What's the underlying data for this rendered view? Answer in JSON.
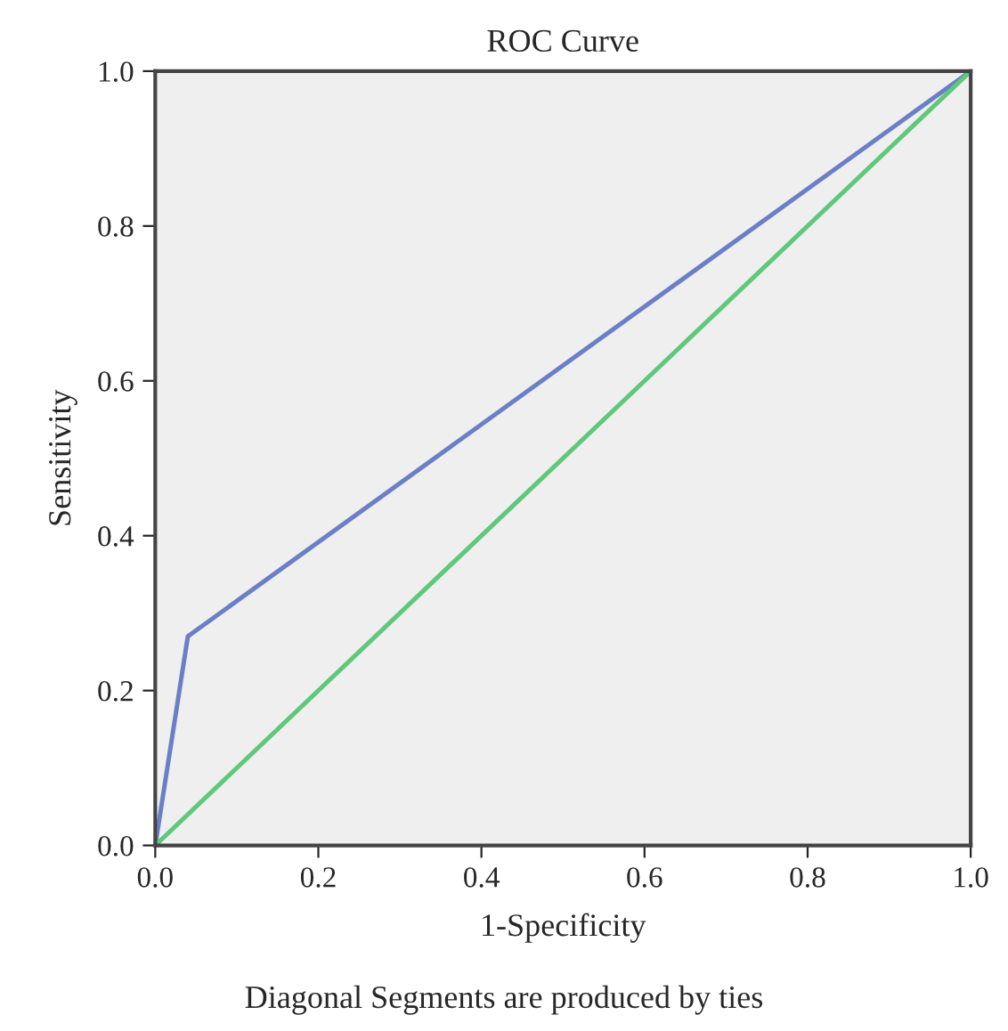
{
  "chart_data": {
    "type": "line",
    "title": "ROC Curve",
    "xlabel": "1-Specificity",
    "ylabel": "Sensitivity",
    "annotations": [
      "Diagonal Segments are produced by ties"
    ],
    "series": [
      {
        "color": "#6b7fc7",
        "x": [
          0,
          0.04,
          1
        ],
        "values": [
          0,
          0.27,
          1
        ]
      },
      {
        "color": "#5fc87a",
        "x": [
          0,
          1
        ],
        "values": [
          0,
          1
        ]
      }
    ],
    "xlim": [
      0,
      1
    ],
    "ylim": [
      0,
      1
    ],
    "xticks": [
      {
        "value": 0,
        "label": "0.0"
      },
      0.2,
      0.4,
      0.6,
      0.8,
      {
        "value": 1,
        "label": "1.0"
      }
    ],
    "yticks": [
      {
        "value": 0,
        "label": "0.0"
      },
      0.2,
      0.4,
      0.6,
      0.8,
      {
        "value": 1,
        "label": "1.0"
      }
    ],
    "grid": false,
    "marker": "none",
    "line_style": "solid"
  }
}
